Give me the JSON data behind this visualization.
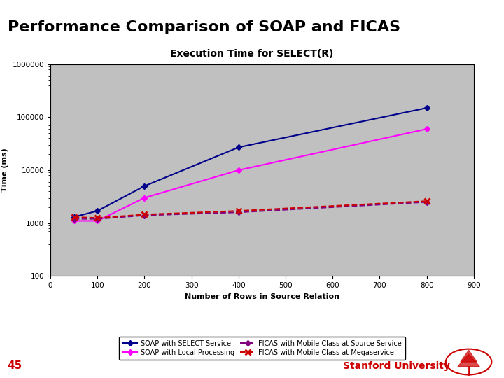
{
  "title_main": "Performance Comparison of SOAP and FICAS",
  "chart_title": "Execution Time for SELECT(R)",
  "xlabel": "Number of Rows in Source Relation",
  "ylabel": "Time (ms)",
  "x_values": [
    50,
    100,
    200,
    400,
    800
  ],
  "soap_select": [
    1300,
    1700,
    5000,
    27000,
    150000
  ],
  "soap_local": [
    1100,
    1100,
    3000,
    10000,
    60000
  ],
  "ficas_source": [
    1200,
    1200,
    1400,
    1600,
    2500
  ],
  "ficas_mega": [
    1300,
    1250,
    1450,
    1700,
    2600
  ],
  "soap_select_color": "#00008B",
  "soap_local_color": "#FF00FF",
  "ficas_source_color": "#800080",
  "ficas_mega_color": "#CC0000",
  "bg_color": "#C0C0C0",
  "slide_bg": "#FFFFFF",
  "header_line_color": "#CC0000",
  "title_color": "#000000",
  "stanford_color": "#CC0000",
  "legend_labels": [
    "SOAP with SELECT Service",
    "SOAP with Local Processing",
    "FICAS with Mobile Class at Source Service",
    "FICAS with Mobile Class at Megaservice"
  ],
  "xlim": [
    0,
    900
  ],
  "ylim_log": [
    100,
    1000000
  ],
  "slide_number": "45",
  "xticks": [
    0,
    100,
    200,
    300,
    400,
    500,
    600,
    700,
    800,
    900
  ],
  "yticks": [
    100,
    1000,
    10000,
    100000,
    1000000
  ],
  "ytick_labels": [
    "100",
    "1000",
    "10000",
    "100000",
    "1000000"
  ]
}
